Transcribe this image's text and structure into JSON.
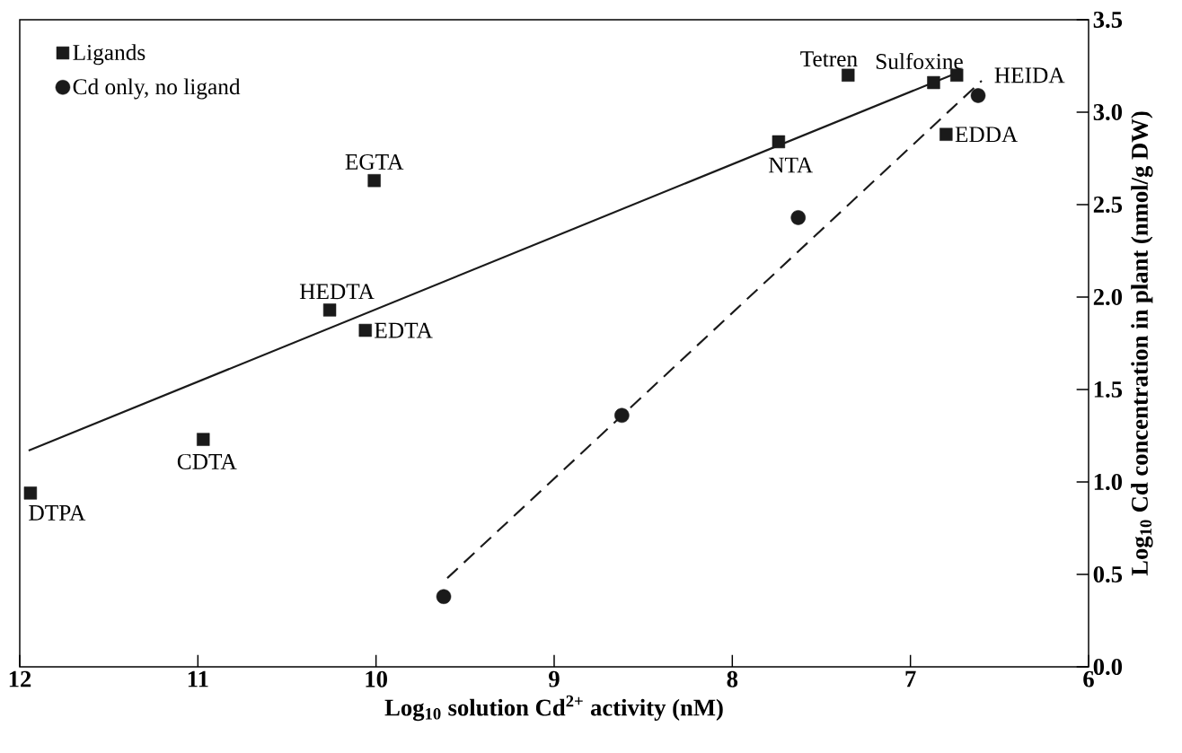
{
  "chart_data": {
    "type": "scatter",
    "xlabel": "Log$_{10}$ solution Cd$^{2+}$ activity (nM)",
    "ylabel": "Log$_{10}$ Cd concentration in plant (nmol/g DW)",
    "xlim": [
      12,
      6
    ],
    "xticks": [
      12,
      11,
      10,
      9,
      8,
      7,
      6
    ],
    "ylim": [
      0,
      3.5
    ],
    "yticks": [
      {
        "value": 0,
        "label": "0.0"
      },
      {
        "value": 0.5,
        "label": "0.5"
      },
      {
        "value": 1,
        "label": "1.0"
      },
      {
        "value": 1.5,
        "label": "1.5"
      },
      {
        "value": 2,
        "label": "2.0"
      },
      {
        "value": 2.5,
        "label": "2.5"
      },
      {
        "value": 3,
        "label": "3.0"
      },
      {
        "value": 3.5,
        "label": "3.5"
      }
    ],
    "grid": false,
    "legend": "top left",
    "series": [
      {
        "name": "Ligands",
        "type": "scatter",
        "marker": "square",
        "color": "#1a1a1a",
        "x": [
          11.94,
          10.97,
          10.26,
          10.06,
          10.01,
          7.74,
          7.35,
          6.87,
          6.74,
          6.8
        ],
        "values": [
          0.94,
          1.23,
          1.93,
          1.82,
          2.63,
          2.84,
          3.2,
          3.16,
          3.2,
          2.88
        ]
      },
      {
        "name": "Cd only, no ligand",
        "type": "scatter",
        "marker": "circle",
        "color": "#1a1a1a",
        "x": [
          9.62,
          8.62,
          7.63,
          6.62
        ],
        "values": [
          0.38,
          1.36,
          2.43,
          3.09
        ]
      },
      {
        "type": "line",
        "marker": "none",
        "line_style": "solid",
        "color": "#1a1a1a",
        "x": [
          11.95,
          6.72
        ],
        "values": [
          1.17,
          3.22
        ]
      },
      {
        "type": "line",
        "marker": "none",
        "line_style": "dashed",
        "color": "#1a1a1a",
        "x": [
          9.6,
          6.6
        ],
        "values": [
          0.48,
          3.17
        ]
      }
    ],
    "annotations": [
      {
        "text": "DTPA",
        "x": 11.94,
        "y": 0.94
      },
      {
        "text": "CDTA",
        "x": 10.97,
        "y": 1.23
      },
      {
        "text": "HEDTA",
        "x": 10.26,
        "y": 1.93
      },
      {
        "text": "EDTA",
        "x": 10.06,
        "y": 1.82
      },
      {
        "text": "EGTA",
        "x": 10.01,
        "y": 2.63
      },
      {
        "text": "NTA",
        "x": 7.74,
        "y": 2.84
      },
      {
        "text": "Tetren",
        "x": 7.35,
        "y": 3.2
      },
      {
        "text": "Sulfoxine",
        "x": 6.87,
        "y": 3.16
      },
      {
        "text": "HEIDA",
        "x": 6.74,
        "y": 3.2
      },
      {
        "text": "EDDA",
        "x": 6.8,
        "y": 2.88
      }
    ]
  }
}
